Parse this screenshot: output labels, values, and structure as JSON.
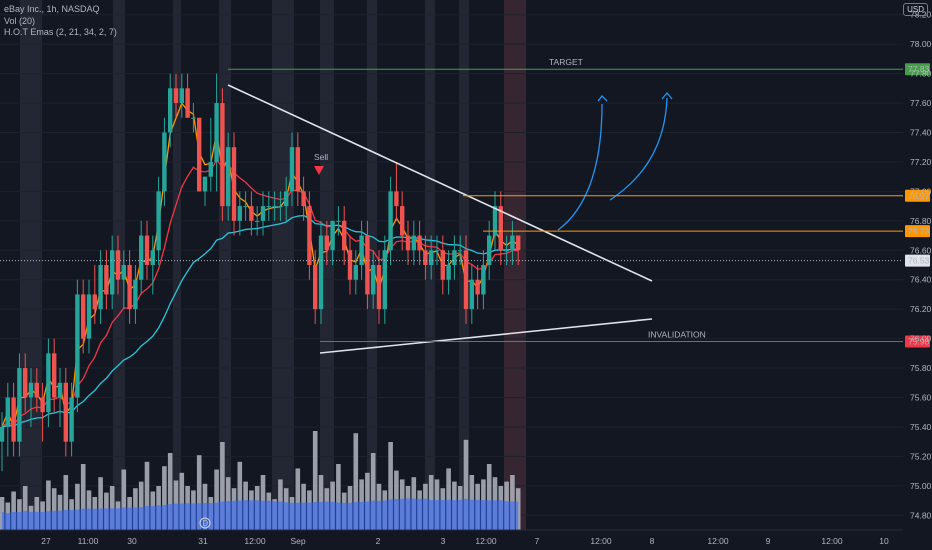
{
  "header": {
    "symbol": "eBay Inc., 1h, NASDAQ",
    "indicator_vol": "Vol (20)",
    "indicator_emas": "H.O.T Emas (2, 21, 34, 2, 7)",
    "currency": "USD"
  },
  "chart_data": {
    "type": "candlestick",
    "y_axis": {
      "range": [
        74.7,
        78.3
      ],
      "ticks": [
        78.2,
        78.0,
        77.8,
        77.6,
        77.4,
        77.2,
        77.0,
        76.8,
        76.6,
        76.4,
        76.2,
        76.0,
        75.8,
        75.6,
        75.4,
        75.2,
        75.0,
        74.8
      ]
    },
    "x_axis_labels": [
      "27",
      "11:00",
      "30",
      "31",
      "12:00",
      "Sep",
      "2",
      "3",
      "12:00",
      "7",
      "12:00",
      "8",
      "12:00",
      "9",
      "12:00",
      "10"
    ],
    "levels": [
      {
        "name": "TARGET",
        "price": 77.83,
        "label": "77.83",
        "color": "#43a047"
      },
      {
        "name": "resistance-1",
        "price": 76.97,
        "label": "76.97",
        "color": "#ff9800"
      },
      {
        "name": "resistance-2",
        "price": 76.73,
        "label": "76.73",
        "color": "#ff9800"
      },
      {
        "name": "current",
        "price": 76.53,
        "label": "76.53",
        "color": "#b2b5be"
      },
      {
        "name": "INVALIDATION",
        "price": 75.98,
        "label": "75.98",
        "color": "#f23645"
      }
    ],
    "annotations": {
      "target_text": "TARGET",
      "invalidation_text": "INVALIDATION",
      "sell_text": "Sell",
      "badge_text": "D"
    },
    "candles": [
      [
        75.3,
        75.5,
        75.1,
        75.4
      ],
      [
        75.4,
        75.7,
        75.2,
        75.6
      ],
      [
        75.6,
        75.7,
        75.2,
        75.3
      ],
      [
        75.3,
        75.9,
        75.2,
        75.8
      ],
      [
        75.8,
        75.9,
        75.5,
        75.6
      ],
      [
        75.6,
        75.8,
        75.4,
        75.7
      ],
      [
        75.7,
        75.8,
        75.5,
        75.6
      ],
      [
        75.6,
        75.7,
        75.3,
        75.5
      ],
      [
        75.5,
        76.0,
        75.4,
        75.9
      ],
      [
        75.9,
        76.0,
        75.5,
        75.6
      ],
      [
        75.6,
        75.8,
        75.4,
        75.7
      ],
      [
        75.7,
        75.8,
        75.2,
        75.3
      ],
      [
        75.3,
        75.7,
        75.2,
        75.6
      ],
      [
        75.6,
        76.4,
        75.5,
        76.3
      ],
      [
        76.3,
        76.4,
        75.9,
        76.0
      ],
      [
        76.0,
        76.4,
        75.9,
        76.3
      ],
      [
        76.3,
        76.5,
        76.1,
        76.2
      ],
      [
        76.2,
        76.6,
        76.1,
        76.5
      ],
      [
        76.5,
        76.6,
        76.2,
        76.3
      ],
      [
        76.3,
        76.7,
        76.2,
        76.6
      ],
      [
        76.6,
        76.7,
        76.3,
        76.4
      ],
      [
        76.4,
        76.6,
        76.2,
        76.5
      ],
      [
        76.5,
        76.6,
        76.1,
        76.2
      ],
      [
        76.2,
        76.5,
        76.1,
        76.4
      ],
      [
        76.4,
        76.8,
        76.3,
        76.7
      ],
      [
        76.7,
        76.8,
        76.4,
        76.5
      ],
      [
        76.5,
        76.7,
        76.3,
        76.6
      ],
      [
        76.6,
        77.1,
        76.5,
        77.0
      ],
      [
        77.0,
        77.5,
        76.9,
        77.4
      ],
      [
        77.4,
        77.8,
        77.3,
        77.7
      ],
      [
        77.7,
        77.8,
        77.5,
        77.6
      ],
      [
        77.6,
        77.8,
        77.5,
        77.7
      ],
      [
        77.7,
        77.8,
        77.5,
        77.5
      ],
      [
        77.5,
        77.6,
        77.4,
        77.5
      ],
      [
        77.5,
        77.5,
        77.0,
        77.0
      ],
      [
        77.0,
        77.1,
        76.9,
        77.1
      ],
      [
        77.1,
        77.5,
        77.0,
        77.2
      ],
      [
        77.2,
        77.8,
        77.0,
        77.6
      ],
      [
        77.6,
        77.7,
        76.8,
        76.9
      ],
      [
        76.9,
        77.4,
        76.8,
        77.3
      ],
      [
        77.3,
        77.4,
        76.7,
        76.8
      ],
      [
        76.8,
        77.0,
        76.7,
        76.9
      ],
      [
        76.9,
        77.0,
        76.8,
        76.9
      ],
      [
        76.9,
        77.0,
        76.7,
        76.8
      ],
      [
        76.8,
        76.9,
        76.7,
        76.8
      ],
      [
        76.8,
        77.0,
        76.7,
        76.9
      ],
      [
        76.9,
        77.0,
        76.8,
        76.9
      ],
      [
        76.9,
        77.0,
        76.8,
        76.9
      ],
      [
        76.9,
        77.0,
        76.8,
        76.9
      ],
      [
        76.9,
        77.1,
        76.8,
        77.0
      ],
      [
        77.0,
        77.4,
        76.9,
        77.3
      ],
      [
        77.3,
        77.4,
        76.9,
        77.0
      ],
      [
        77.0,
        77.1,
        76.8,
        76.9
      ],
      [
        76.9,
        77.0,
        76.4,
        76.5
      ],
      [
        76.5,
        76.6,
        76.1,
        76.2
      ],
      [
        76.2,
        76.8,
        76.1,
        76.7
      ],
      [
        76.7,
        76.8,
        76.5,
        76.6
      ],
      [
        76.6,
        76.8,
        76.5,
        76.8
      ],
      [
        76.8,
        76.9,
        76.7,
        76.8
      ],
      [
        76.8,
        76.9,
        76.5,
        76.6
      ],
      [
        76.6,
        76.7,
        76.3,
        76.4
      ],
      [
        76.4,
        76.6,
        76.3,
        76.5
      ],
      [
        76.5,
        76.8,
        76.4,
        76.7
      ],
      [
        76.7,
        76.8,
        76.2,
        76.3
      ],
      [
        76.3,
        76.6,
        76.2,
        76.5
      ],
      [
        76.5,
        76.6,
        76.1,
        76.2
      ],
      [
        76.2,
        76.7,
        76.1,
        76.6
      ],
      [
        76.6,
        77.1,
        76.5,
        77.0
      ],
      [
        77.0,
        77.2,
        76.8,
        76.9
      ],
      [
        76.9,
        77.0,
        76.6,
        76.7
      ],
      [
        76.7,
        76.8,
        76.5,
        76.6
      ],
      [
        76.6,
        76.8,
        76.5,
        76.7
      ],
      [
        76.7,
        76.8,
        76.5,
        76.6
      ],
      [
        76.6,
        76.7,
        76.4,
        76.5
      ],
      [
        76.5,
        76.7,
        76.4,
        76.6
      ],
      [
        76.6,
        76.7,
        76.5,
        76.6
      ],
      [
        76.6,
        76.7,
        76.3,
        76.4
      ],
      [
        76.4,
        76.6,
        76.3,
        76.5
      ],
      [
        76.5,
        76.7,
        76.4,
        76.6
      ],
      [
        76.6,
        76.7,
        76.5,
        76.6
      ],
      [
        76.6,
        76.7,
        76.1,
        76.2
      ],
      [
        76.2,
        76.5,
        76.1,
        76.4
      ],
      [
        76.4,
        76.5,
        76.2,
        76.3
      ],
      [
        76.3,
        76.6,
        76.2,
        76.5
      ],
      [
        76.5,
        76.8,
        76.4,
        76.7
      ],
      [
        76.7,
        77.0,
        76.6,
        76.9
      ],
      [
        76.9,
        77.0,
        76.5,
        76.6
      ],
      [
        76.6,
        76.7,
        76.5,
        76.6
      ],
      [
        76.6,
        76.8,
        76.5,
        76.7
      ],
      [
        76.7,
        76.7,
        76.5,
        76.6
      ]
    ],
    "volumes": [
      30,
      25,
      35,
      28,
      40,
      22,
      30,
      26,
      45,
      38,
      32,
      50,
      28,
      42,
      60,
      36,
      30,
      48,
      34,
      40,
      26,
      55,
      30,
      38,
      44,
      62,
      35,
      40,
      58,
      70,
      45,
      52,
      40,
      36,
      68,
      42,
      30,
      55,
      80,
      48,
      38,
      62,
      44,
      36,
      40,
      50,
      34,
      28,
      46,
      38,
      30,
      56,
      42,
      36,
      90,
      50,
      38,
      44,
      60,
      34,
      40,
      88,
      46,
      52,
      70,
      42,
      36,
      80,
      54,
      46,
      40,
      48,
      36,
      42,
      50,
      46,
      38,
      56,
      44,
      40,
      82,
      50,
      42,
      46,
      60,
      48,
      40,
      44,
      50,
      38
    ]
  }
}
